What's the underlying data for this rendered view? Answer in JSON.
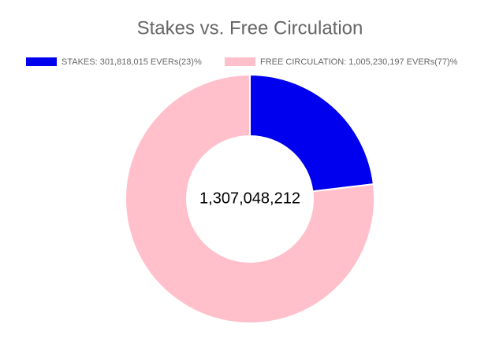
{
  "chart_data": {
    "type": "doughnut",
    "title": "Stakes vs. Free Circulation",
    "categories": [
      "STAKES: 301,818,015 EVERs(23)%",
      "FREE CIRCULATION: 1,005,230,197 EVERs(77)%"
    ],
    "values": [
      301818015,
      1005230197
    ],
    "colors": [
      "#0000ee",
      "#ffc0cb"
    ],
    "center_label": "1,307,048,212",
    "legend": "top"
  }
}
